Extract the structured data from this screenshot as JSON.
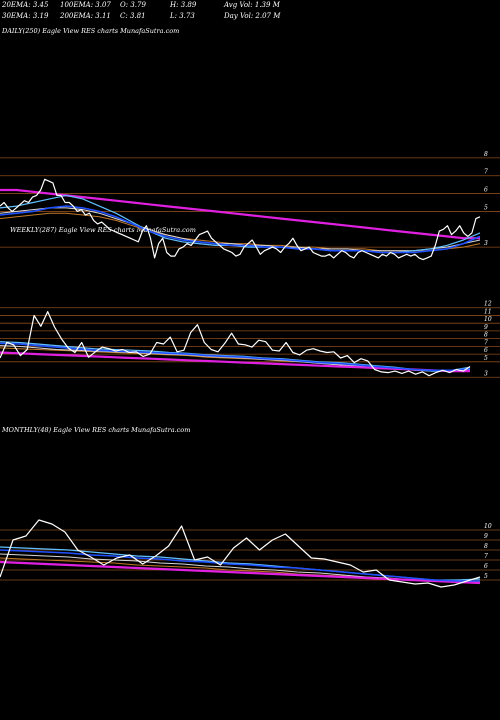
{
  "header": {
    "row1": [
      {
        "key": "ema20",
        "text": "20EMA: 3.45"
      },
      {
        "key": "ema100",
        "text": "100EMA: 3.07"
      },
      {
        "key": "open",
        "text": "O: 3.79"
      },
      {
        "key": "high",
        "text": "H: 3.89"
      },
      {
        "key": "avgvol",
        "text": "Avg Vol: 1.39 M"
      }
    ],
    "row2": [
      {
        "key": "ema30",
        "text": "30EMA: 3.19"
      },
      {
        "key": "ema200",
        "text": "200EMA: 3.11"
      },
      {
        "key": "close",
        "text": "C: 3.81"
      },
      {
        "key": "low",
        "text": "L: 3.73"
      },
      {
        "key": "dayvol",
        "text": "Day Vol: 2.07 M"
      }
    ]
  },
  "colors": {
    "background": "#000000",
    "price": "#ffffff",
    "hline": "#8a4a1a",
    "magenta": "#e020e0",
    "blue": "#2050ff",
    "lightblue": "#60c0ff",
    "orange": "#c07828",
    "white_ma": "#d8d8d8"
  },
  "chart_data": [
    {
      "type": "line",
      "title": "DAILY(250) Eagle  View  RES charts MunafaSutra.com",
      "ylim": [
        2,
        9
      ],
      "yticks": [
        3,
        5,
        6,
        7,
        8
      ],
      "series": [
        {
          "role": "price",
          "values": [
            5.3,
            5.5,
            5.2,
            5.0,
            5.2,
            5.4,
            5.6,
            5.5,
            5.8,
            5.9,
            6.2,
            6.8,
            6.7,
            6.6,
            5.9,
            5.9,
            5.5,
            5.5,
            5.3,
            5.0,
            5.1,
            4.8,
            4.9,
            4.5,
            4.3,
            4.4,
            4.2,
            4.0,
            3.9,
            3.8,
            3.7,
            3.6,
            3.5,
            3.4,
            3.3,
            3.9,
            4.2,
            3.5,
            2.4,
            3.2,
            3.5,
            2.7,
            2.5,
            2.5,
            2.9,
            3.0,
            3.2,
            3.1,
            3.4,
            3.7,
            3.8,
            3.9,
            3.5,
            3.3,
            3.1,
            2.9,
            2.8,
            2.7,
            2.5,
            2.6,
            3.0,
            3.2,
            3.4,
            3.0,
            2.6,
            2.8,
            2.9,
            3.0,
            2.9,
            2.7,
            3.0,
            3.2,
            3.5,
            3.1,
            2.8,
            2.9,
            3.0,
            2.7,
            2.6,
            2.5,
            2.5,
            2.6,
            2.4,
            2.6,
            2.8,
            2.7,
            2.5,
            2.4,
            2.7,
            2.8,
            2.7,
            2.6,
            2.5,
            2.4,
            2.6,
            2.5,
            2.7,
            2.6,
            2.4,
            2.5,
            2.6,
            2.5,
            2.6,
            2.4,
            2.3,
            2.4,
            2.5,
            3.1,
            3.9,
            4.0,
            4.2,
            3.7,
            3.9,
            4.2,
            3.8,
            3.6,
            3.8,
            4.6,
            4.7
          ]
        },
        {
          "role": "ema-magenta",
          "values": [
            6.2,
            6.2,
            6.1,
            6.0,
            5.9,
            5.8,
            5.7,
            5.6,
            5.5,
            5.4,
            5.3,
            5.2,
            5.1,
            5.0,
            4.9,
            4.8,
            4.7,
            4.6,
            4.5,
            4.4,
            4.3,
            4.2,
            4.1,
            4.0,
            3.9,
            3.8,
            3.7,
            3.6,
            3.5,
            3.5
          ]
        },
        {
          "role": "ema-blue",
          "values": [
            4.8,
            4.9,
            5.0,
            5.2,
            5.3,
            5.2,
            5.0,
            4.7,
            4.3,
            3.9,
            3.6,
            3.4,
            3.3,
            3.2,
            3.1,
            3.1,
            3.0,
            3.0,
            2.9,
            2.9,
            2.8,
            2.8,
            2.8,
            2.7,
            2.7,
            2.7,
            2.8,
            2.9,
            3.2,
            3.6
          ]
        },
        {
          "role": "ema-lightblue",
          "values": [
            5.2,
            5.3,
            5.5,
            5.7,
            5.9,
            5.7,
            5.3,
            4.9,
            4.4,
            3.9,
            3.5,
            3.3,
            3.2,
            3.1,
            3.1,
            3.0,
            3.0,
            3.0,
            2.9,
            2.9,
            2.8,
            2.8,
            2.8,
            2.7,
            2.7,
            2.8,
            2.9,
            3.1,
            3.4,
            3.8
          ]
        },
        {
          "role": "ema-orange",
          "values": [
            4.6,
            4.7,
            4.8,
            4.9,
            4.9,
            4.8,
            4.7,
            4.5,
            4.2,
            3.9,
            3.7,
            3.5,
            3.4,
            3.3,
            3.2,
            3.2,
            3.1,
            3.1,
            3.0,
            3.0,
            2.9,
            2.9,
            2.9,
            2.8,
            2.8,
            2.8,
            2.8,
            2.9,
            3.0,
            3.2
          ]
        },
        {
          "role": "ema-white",
          "values": [
            4.9,
            5.0,
            5.1,
            5.2,
            5.2,
            5.1,
            4.9,
            4.6,
            4.3,
            4.0,
            3.7,
            3.5,
            3.3,
            3.2,
            3.2,
            3.1,
            3.1,
            3.0,
            3.0,
            2.9,
            2.9,
            2.9,
            2.8,
            2.8,
            2.8,
            2.8,
            2.9,
            3.0,
            3.2,
            3.4
          ]
        }
      ]
    },
    {
      "type": "line",
      "title": "WEEKLY(287) Eagle  View  RES charts MunafaSutra.com",
      "ylim": [
        2,
        13
      ],
      "yticks": [
        3,
        5,
        6,
        7,
        8,
        9,
        10,
        11,
        12
      ],
      "series": [
        {
          "role": "price",
          "values": [
            5.5,
            7.5,
            7.2,
            5.8,
            6.6,
            11.0,
            9.6,
            11.5,
            9.5,
            8.0,
            6.8,
            6.2,
            7.5,
            5.6,
            6.3,
            6.9,
            6.7,
            6.4,
            6.6,
            6.2,
            6.3,
            5.7,
            6.0,
            7.5,
            7.3,
            8.2,
            6.3,
            6.5,
            8.8,
            9.8,
            7.5,
            6.6,
            6.3,
            7.4,
            8.7,
            7.3,
            7.2,
            6.9,
            7.8,
            7.6,
            6.5,
            6.4,
            7.5,
            6.2,
            5.9,
            6.5,
            6.7,
            6.4,
            6.2,
            6.3,
            5.5,
            5.8,
            4.9,
            5.4,
            5.1,
            4.0,
            3.7,
            3.6,
            3.8,
            3.5,
            3.8,
            3.4,
            3.7,
            3.2,
            3.6,
            3.9,
            3.6,
            4.0,
            3.8,
            4.4
          ]
        },
        {
          "role": "ema-magenta",
          "values": [
            6.2,
            6.1,
            6.0,
            5.9,
            5.8,
            5.7,
            5.6,
            5.5,
            5.4,
            5.3,
            5.2,
            5.1,
            5.0,
            4.9,
            4.8,
            4.7,
            4.6,
            4.5,
            4.4,
            4.3,
            4.2,
            4.1,
            4.0,
            3.9,
            3.8,
            3.8
          ]
        },
        {
          "role": "ema-blue",
          "values": [
            7.4,
            7.3,
            7.1,
            6.9,
            6.7,
            6.5,
            6.4,
            6.3,
            6.2,
            6.1,
            6.0,
            5.8,
            5.7,
            5.6,
            5.4,
            5.3,
            5.1,
            4.9,
            4.8,
            4.6,
            4.4,
            4.2,
            4.0,
            3.9,
            3.9,
            4.1
          ]
        },
        {
          "role": "ema-lightblue",
          "values": [
            7.6,
            7.5,
            7.3,
            7.1,
            6.9,
            6.7,
            6.6,
            6.5,
            6.4,
            6.2,
            6.1,
            5.9,
            5.8,
            5.7,
            5.5,
            5.4,
            5.2,
            5.0,
            4.9,
            4.7,
            4.5,
            4.3,
            4.0,
            3.8,
            3.9,
            4.3
          ]
        },
        {
          "role": "ema-orange",
          "values": [
            6.8,
            6.7,
            6.6,
            6.5,
            6.4,
            6.3,
            6.2,
            6.1,
            6.0,
            5.9,
            5.8,
            5.6,
            5.5,
            5.4,
            5.3,
            5.1,
            5.0,
            4.8,
            4.7,
            4.5,
            4.4,
            4.2,
            4.0,
            3.9,
            3.8,
            3.9
          ]
        },
        {
          "role": "ema-white",
          "values": [
            7.1,
            7.0,
            6.8,
            6.6,
            6.5,
            6.4,
            6.3,
            6.2,
            6.1,
            6.0,
            5.9,
            5.7,
            5.6,
            5.5,
            5.3,
            5.2,
            5.0,
            4.8,
            4.6,
            4.5,
            4.3,
            4.1,
            3.9,
            3.8,
            3.8,
            4.0
          ]
        }
      ]
    },
    {
      "type": "line",
      "title": "MONTHLY(48) Eagle  View  RES charts MunafaSutra.com",
      "ylim": [
        3,
        13
      ],
      "yticks": [
        5,
        6,
        7,
        8,
        9,
        10
      ],
      "series": [
        {
          "role": "price",
          "values": [
            5.3,
            9.0,
            9.4,
            11.0,
            10.6,
            9.8,
            8.0,
            7.3,
            6.5,
            7.2,
            7.5,
            6.6,
            7.4,
            8.4,
            10.4,
            7.0,
            7.3,
            6.5,
            8.2,
            9.2,
            8.0,
            9.0,
            9.6,
            8.4,
            7.2,
            7.1,
            6.8,
            6.5,
            5.8,
            6.0,
            5.0,
            4.8,
            4.6,
            4.7,
            4.3,
            4.5,
            4.9,
            5.3
          ]
        },
        {
          "role": "ema-magenta",
          "values": [
            6.8,
            6.7,
            6.6,
            6.5,
            6.4,
            6.3,
            6.2,
            6.1,
            6.0,
            5.9,
            5.8,
            5.7,
            5.6,
            5.5,
            5.4,
            5.3,
            5.2,
            5.1,
            5.0,
            4.9,
            4.8,
            4.7
          ]
        },
        {
          "role": "ema-blue",
          "values": [
            8.0,
            7.9,
            7.8,
            7.7,
            7.5,
            7.4,
            7.2,
            7.1,
            6.9,
            6.8,
            6.6,
            6.5,
            6.3,
            6.2,
            6.0,
            5.8,
            5.6,
            5.4,
            5.2,
            5.0,
            4.9,
            4.9
          ]
        },
        {
          "role": "ema-lightblue",
          "values": [
            8.3,
            8.2,
            8.1,
            8.0,
            7.8,
            7.6,
            7.4,
            7.3,
            7.1,
            6.9,
            6.7,
            6.6,
            6.4,
            6.2,
            6.0,
            5.8,
            5.6,
            5.4,
            5.2,
            5.0,
            5.0,
            5.1
          ]
        },
        {
          "role": "ema-orange",
          "values": [
            7.2,
            7.1,
            7.0,
            6.9,
            6.8,
            6.7,
            6.5,
            6.4,
            6.3,
            6.2,
            6.0,
            5.9,
            5.8,
            5.6,
            5.5,
            5.4,
            5.2,
            5.1,
            5.0,
            4.9,
            4.8,
            4.8
          ]
        },
        {
          "role": "ema-white",
          "values": [
            7.6,
            7.5,
            7.4,
            7.3,
            7.1,
            7.0,
            6.9,
            6.7,
            6.6,
            6.4,
            6.3,
            6.1,
            6.0,
            5.8,
            5.7,
            5.5,
            5.3,
            5.2,
            5.0,
            4.9,
            4.8,
            4.9
          ]
        }
      ]
    }
  ]
}
